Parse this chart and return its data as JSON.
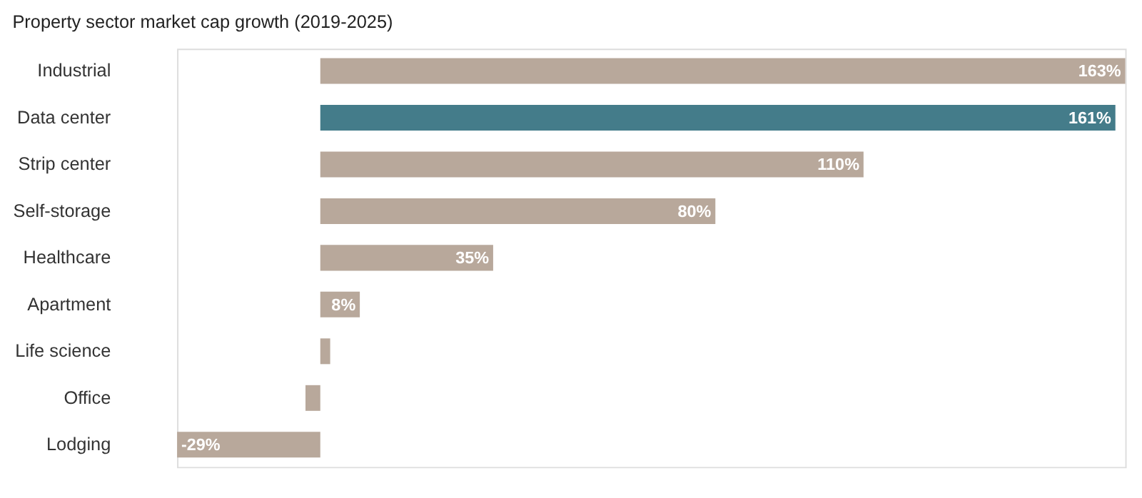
{
  "chart_data": {
    "type": "bar",
    "orientation": "horizontal",
    "title": "Property sector market cap growth (2019-2025)",
    "categories": [
      "Industrial",
      "Data center",
      "Strip center",
      "Self-storage",
      "Healthcare",
      "Apartment",
      "Life science",
      "Office",
      "Lodging"
    ],
    "values": [
      163,
      161,
      110,
      80,
      35,
      8,
      2,
      -3,
      -29
    ],
    "value_labels": [
      "163%",
      "161%",
      "110%",
      "80%",
      "35%",
      "8%",
      null,
      null,
      "-29%"
    ],
    "colors": [
      "#b8a89b",
      "#447c8a",
      "#b8a89b",
      "#b8a89b",
      "#b8a89b",
      "#b8a89b",
      "#b8a89b",
      "#b8a89b",
      "#b8a89b"
    ]
  }
}
